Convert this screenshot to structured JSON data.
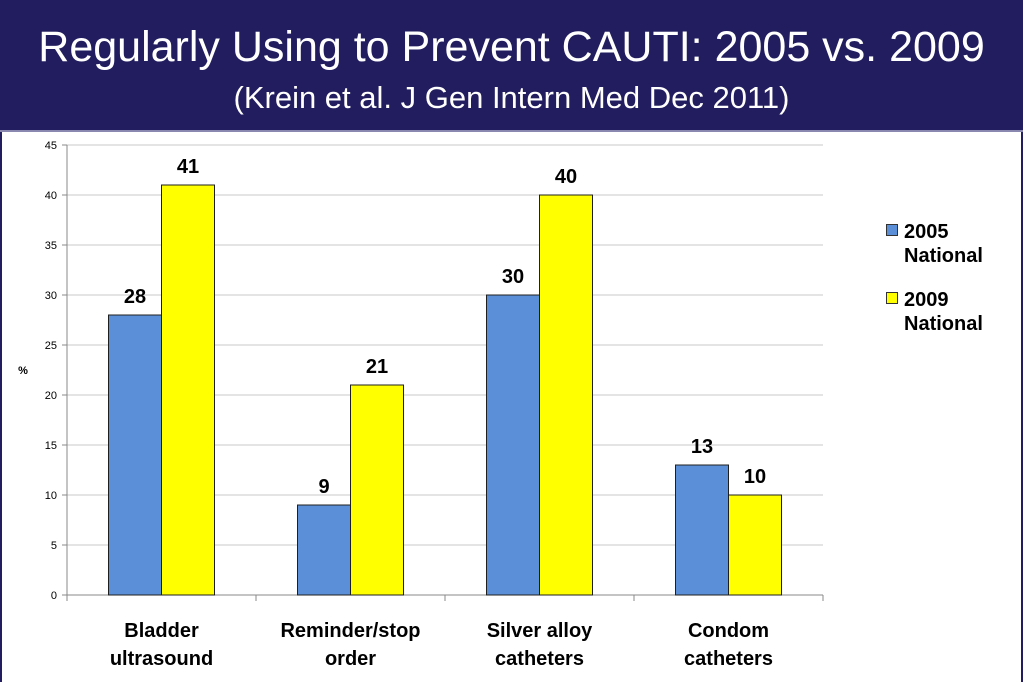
{
  "header": {
    "title": "Regularly Using to Prevent CAUTI: 2005 vs. 2009",
    "subtitle": "(Krein et al. J Gen Intern Med Dec 2011)"
  },
  "colors": {
    "header_bg": "#211d5e",
    "series_2005": "#5b8fd7",
    "series_2009": "#ffff00"
  },
  "chart_data": {
    "type": "bar",
    "title": "Regularly Using to Prevent CAUTI: 2005 vs. 2009",
    "subtitle": "(Krein et al. J Gen Intern Med Dec 2011)",
    "ylabel": "%",
    "xlabel": "",
    "ylim": [
      0,
      45
    ],
    "yticks": [
      0,
      5,
      10,
      15,
      20,
      25,
      30,
      35,
      40,
      45
    ],
    "grid": true,
    "legend_position": "right",
    "categories": [
      "Bladder ultrasound",
      "Reminder/stop order",
      "Silver alloy catheters",
      "Condom catheters"
    ],
    "category_lines": [
      [
        "Bladder",
        "ultrasound"
      ],
      [
        "Reminder/stop",
        "order"
      ],
      [
        "Silver alloy",
        "catheters"
      ],
      [
        "Condom",
        "catheters"
      ]
    ],
    "series": [
      {
        "name": "2005 National",
        "name_lines": [
          "2005",
          "National"
        ],
        "color": "#5b8fd7",
        "values": [
          28,
          9,
          30,
          13
        ]
      },
      {
        "name": "2009 National",
        "name_lines": [
          "2009",
          "National"
        ],
        "color": "#ffff00",
        "values": [
          41,
          21,
          40,
          10
        ]
      }
    ]
  }
}
